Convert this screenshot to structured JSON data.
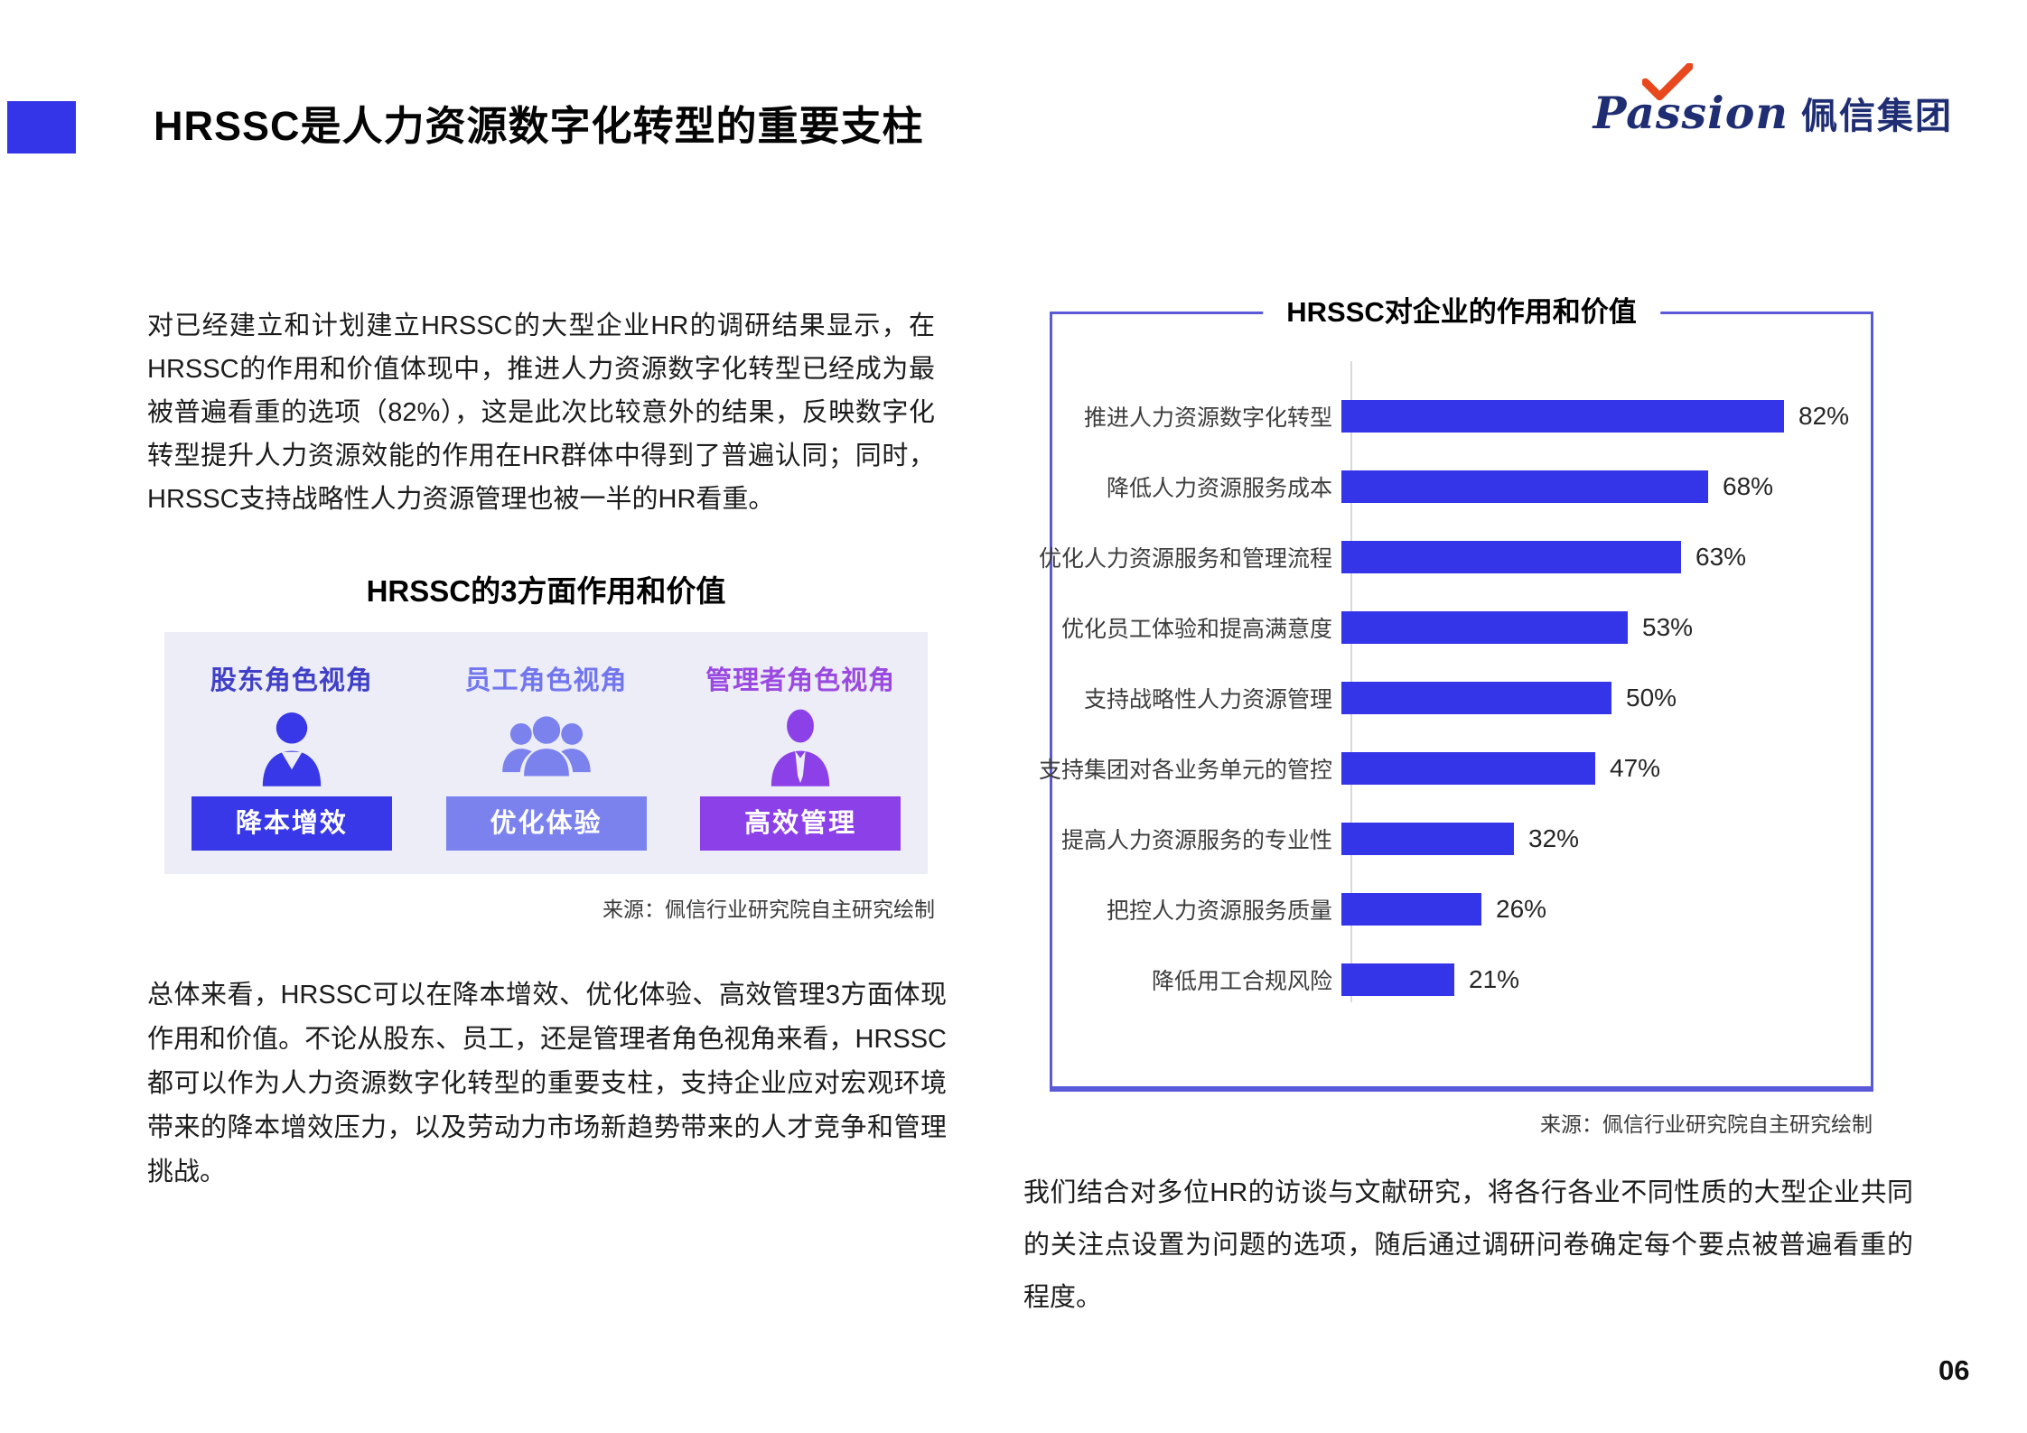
{
  "page": {
    "title": "HRSSC是人力资源数字化转型的重要支柱",
    "page_number": "06"
  },
  "colors": {
    "accent": "#3434e8",
    "chart_border": "#5a5ad8",
    "logo_navy": "#1f2d73",
    "logo_check": "#e8481e",
    "panel_bg": "#ededf7"
  },
  "logo": {
    "brand_en": "Passion",
    "brand_cn": "佩信集团"
  },
  "left": {
    "paragraph1": "对已经建立和计划建立HRSSC的大型企业HR的调研结果显示，在HRSSC的作用和价值体现中，推进人力资源数字化转型已经成为最被普遍看重的选项（82%），这是此次比较意外的结果，反映数字化转型提升人力资源效能的作用在HR群体中得到了普遍认同；同时，HRSSC支持战略性人力资源管理也被一半的HR看重。",
    "panel": {
      "title": "HRSSC的3方面作用和价值",
      "roles": [
        {
          "perspective": "股东角色视角",
          "title_color": "#4040c8",
          "value": "降本增效",
          "color": "#3838e8",
          "icon": "businessman-icon"
        },
        {
          "perspective": "员工角色视角",
          "title_color": "#7276ee",
          "value": "优化体验",
          "color": "#7b82ee",
          "icon": "people-group-icon"
        },
        {
          "perspective": "管理者角色视角",
          "title_color": "#9a4ae0",
          "value": "高效管理",
          "color": "#8c40e8",
          "icon": "manager-tie-icon"
        }
      ],
      "source": "来源：佩信行业研究院自主研究绘制"
    },
    "paragraph2": "总体来看，HRSSC可以在降本增效、优化体验、高效管理3方面体现作用和价值。不论从股东、员工，还是管理者角色视角来看，HRSSC都可以作为人力资源数字化转型的重要支柱，支持企业应对宏观环境带来的降本增效压力，以及劳动力市场新趋势带来的人才竞争和管理挑战。"
  },
  "right": {
    "source": "来源：佩信行业研究院自主研究绘制",
    "paragraph": "我们结合对多位HR的访谈与文献研究，将各行各业不同性质的大型企业共同的关注点设置为问题的选项，随后通过调研问卷确定每个要点被普遍看重的程度。"
  },
  "chart_data": {
    "type": "bar",
    "orientation": "horizontal",
    "title": "HRSSC对企业的作用和价值",
    "categories": [
      "推进人力资源数字化转型",
      "降低人力资源服务成本",
      "优化人力资源服务和管理流程",
      "优化员工体验和提高满意度",
      "支持战略性人力资源管理",
      "支持集团对各业务单元的管控",
      "提高人力资源服务的专业性",
      "把控人力资源服务质量",
      "降低用工合规风险"
    ],
    "values": [
      82,
      68,
      63,
      53,
      50,
      47,
      32,
      26,
      21
    ],
    "unit": "%",
    "bar_color": "#3434e8",
    "xlim": [
      0,
      100
    ],
    "grid": false,
    "legend": "none"
  }
}
